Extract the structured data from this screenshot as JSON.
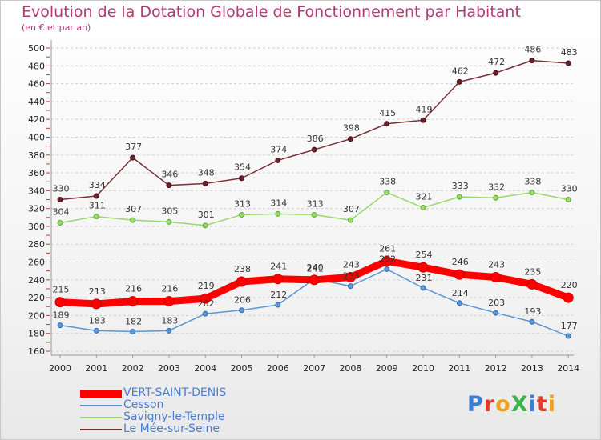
{
  "title": "Evolution de la Dotation Globale de Fonctionnement par Habitant",
  "subtitle": "(en € et par an)",
  "logo": "ProXiti",
  "chart_data": {
    "type": "line",
    "x": [
      "2000",
      "2001",
      "2002",
      "2003",
      "2004",
      "2005",
      "2006",
      "2007",
      "2008",
      "2009",
      "2010",
      "2011",
      "2012",
      "2013",
      "2014"
    ],
    "ylim": [
      160,
      500
    ],
    "yticks": [
      160,
      180,
      200,
      220,
      240,
      260,
      280,
      300,
      320,
      340,
      360,
      380,
      400,
      420,
      440,
      460,
      480,
      500
    ],
    "grid": "horizontal dashed",
    "legend_position": "bottom-left",
    "series": [
      {
        "name": "VERT-SAINT-DENIS",
        "color": "#ff0000",
        "values": [
          215,
          213,
          216,
          216,
          219,
          238,
          241,
          240,
          243,
          261,
          254,
          246,
          243,
          235,
          220
        ]
      },
      {
        "name": "Cesson",
        "color": "#5b97d4",
        "values": [
          189,
          183,
          182,
          183,
          202,
          206,
          212,
          241,
          233,
          252,
          231,
          214,
          203,
          193,
          177
        ]
      },
      {
        "name": "Savigny-le-Temple",
        "color": "#98d96a",
        "values": [
          304,
          311,
          307,
          305,
          301,
          313,
          314,
          313,
          307,
          338,
          321,
          333,
          332,
          338,
          330
        ]
      },
      {
        "name": "Le Mée-sur-Seine",
        "color": "#7a2e35",
        "values": [
          330,
          334,
          377,
          346,
          348,
          354,
          374,
          386,
          398,
          415,
          419,
          462,
          472,
          486,
          483
        ]
      }
    ]
  }
}
